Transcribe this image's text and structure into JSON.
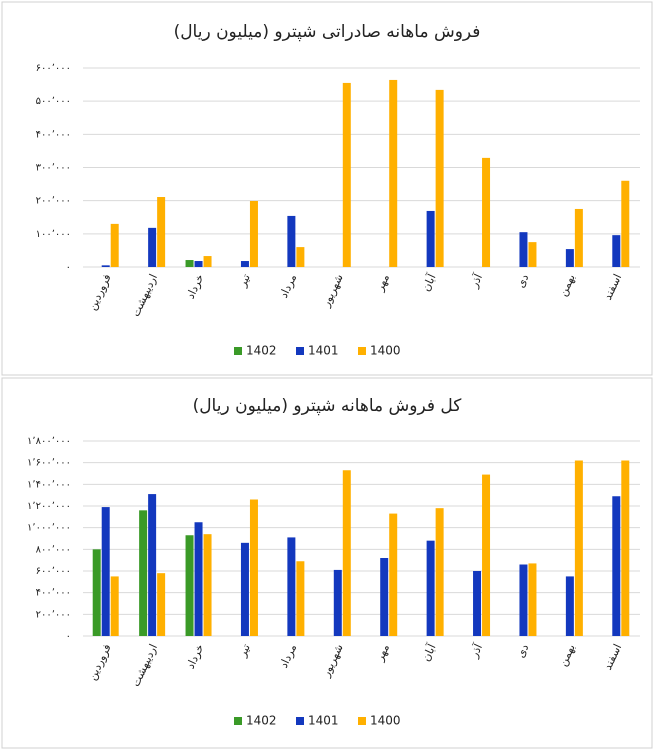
{
  "chart_data": [
    {
      "type": "bar",
      "title": "فروش ماهانه صادراتی شپترو (میلیون ریال)",
      "categories": [
        "فروردین",
        "اردیبهشت",
        "خرداد",
        "تیر",
        "مرداد",
        "شهریور",
        "مهر",
        "آبان",
        "آذر",
        "دی",
        "بهمن",
        "اسفند"
      ],
      "series": [
        {
          "name": "1402",
          "color": "#3a9a27",
          "values": [
            null,
            null,
            21000,
            null,
            null,
            null,
            null,
            null,
            null,
            null,
            null,
            null
          ]
        },
        {
          "name": "1401",
          "color": "#1338be",
          "values": [
            5000,
            118000,
            18000,
            18000,
            154000,
            null,
            null,
            169000,
            null,
            105000,
            54000,
            96000
          ]
        },
        {
          "name": "1400",
          "color": "#ffb000",
          "values": [
            130000,
            211000,
            33000,
            199000,
            60000,
            555000,
            564000,
            534000,
            329000,
            75000,
            175000,
            260000
          ]
        }
      ],
      "ylim": [
        0,
        600000
      ],
      "yticks": [
        {
          "value": 0,
          "label": "۰"
        },
        {
          "value": 100000,
          "label": "۱۰۰٬۰۰۰"
        },
        {
          "value": 200000,
          "label": "۲۰۰٬۰۰۰"
        },
        {
          "value": 300000,
          "label": "۳۰۰٬۰۰۰"
        },
        {
          "value": 400000,
          "label": "۴۰۰٬۰۰۰"
        },
        {
          "value": 500000,
          "label": "۵۰۰٬۰۰۰"
        },
        {
          "value": 600000,
          "label": "۶۰۰٬۰۰۰"
        }
      ],
      "grid": true,
      "legend": "bottom"
    },
    {
      "type": "bar",
      "title": "کل فروش ماهانه شپترو (میلیون ریال)",
      "categories": [
        "فروردین",
        "اردیبهشت",
        "خرداد",
        "تیر",
        "مرداد",
        "شهریور",
        "مهر",
        "آبان",
        "آذر",
        "دی",
        "بهمن",
        "اسفند"
      ],
      "series": [
        {
          "name": "1402",
          "color": "#3a9a27",
          "values": [
            800000,
            1160000,
            930000,
            null,
            null,
            null,
            null,
            null,
            null,
            null,
            null,
            null
          ]
        },
        {
          "name": "1401",
          "color": "#1338be",
          "values": [
            1190000,
            1310000,
            1050000,
            860000,
            910000,
            610000,
            720000,
            880000,
            600000,
            660000,
            550000,
            1290000
          ]
        },
        {
          "name": "1400",
          "color": "#ffb000",
          "values": [
            550000,
            580000,
            940000,
            1260000,
            690000,
            1530000,
            1130000,
            1180000,
            1490000,
            670000,
            1620000,
            1620000
          ]
        }
      ],
      "ylim": [
        0,
        1800000
      ],
      "yticks": [
        {
          "value": 0,
          "label": "۰"
        },
        {
          "value": 200000,
          "label": "۲۰۰٬۰۰۰"
        },
        {
          "value": 400000,
          "label": "۴۰۰٬۰۰۰"
        },
        {
          "value": 600000,
          "label": "۶۰۰٬۰۰۰"
        },
        {
          "value": 800000,
          "label": "۸۰۰٬۰۰۰"
        },
        {
          "value": 1000000,
          "label": "۱٬۰۰۰٬۰۰۰"
        },
        {
          "value": 1200000,
          "label": "۱٬۲۰۰٬۰۰۰"
        },
        {
          "value": 1400000,
          "label": "۱٬۴۰۰٬۰۰۰"
        },
        {
          "value": 1600000,
          "label": "۱٬۶۰۰٬۰۰۰"
        },
        {
          "value": 1800000,
          "label": "۱٬۸۰۰٬۰۰۰"
        }
      ],
      "grid": true,
      "legend": "bottom"
    }
  ]
}
